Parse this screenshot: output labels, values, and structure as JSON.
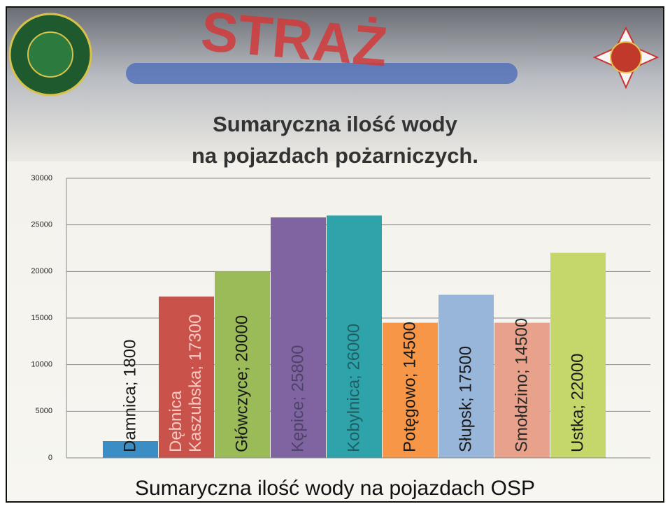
{
  "chart_data": {
    "type": "bar",
    "banner_text": "STRAŻ",
    "title": "Sumaryczna ilość wody",
    "subtitle": "na pojazdach pożarniczych.",
    "caption": "Sumaryczna ilość wody na pojazdach OSP",
    "categories": [
      "Damnica",
      "Dębnica Kaszubska",
      "Główczyce",
      "Kępice",
      "Kobylnica",
      "Potęgowo",
      "Słupsk",
      "Smołdzino",
      "Ustka"
    ],
    "values": [
      1800,
      17300,
      20000,
      25800,
      26000,
      14500,
      17500,
      14500,
      22000
    ],
    "value_labels": [
      "Damnica; 1800",
      "Dębnica Kaszubska; 17300",
      "Główczyce; 20000",
      "Kępice; 25800",
      "Kobylnica; 26000",
      "Potęgowo; 14500",
      "Słupsk; 17500",
      "Smołdzino; 14500",
      "Ustka; 22000"
    ],
    "colors": [
      "#3b8dc6",
      "#c9534b",
      "#9bbb59",
      "#8064a2",
      "#2ea3aa",
      "#f79646",
      "#98b5da",
      "#e8a28b",
      "#c5d66b"
    ],
    "value_label_colors": [
      "#1a1a1a",
      "#f6c9c2",
      "#1a1a1a",
      "#4d4366",
      "#1f5e63",
      "#1a1a1a",
      "#1a1a1a",
      "#2a2a2a",
      "#1a1a1a"
    ],
    "ylim": [
      0,
      30000
    ],
    "yticks": [
      0,
      5000,
      10000,
      15000,
      20000,
      25000,
      30000
    ],
    "grid": true
  }
}
